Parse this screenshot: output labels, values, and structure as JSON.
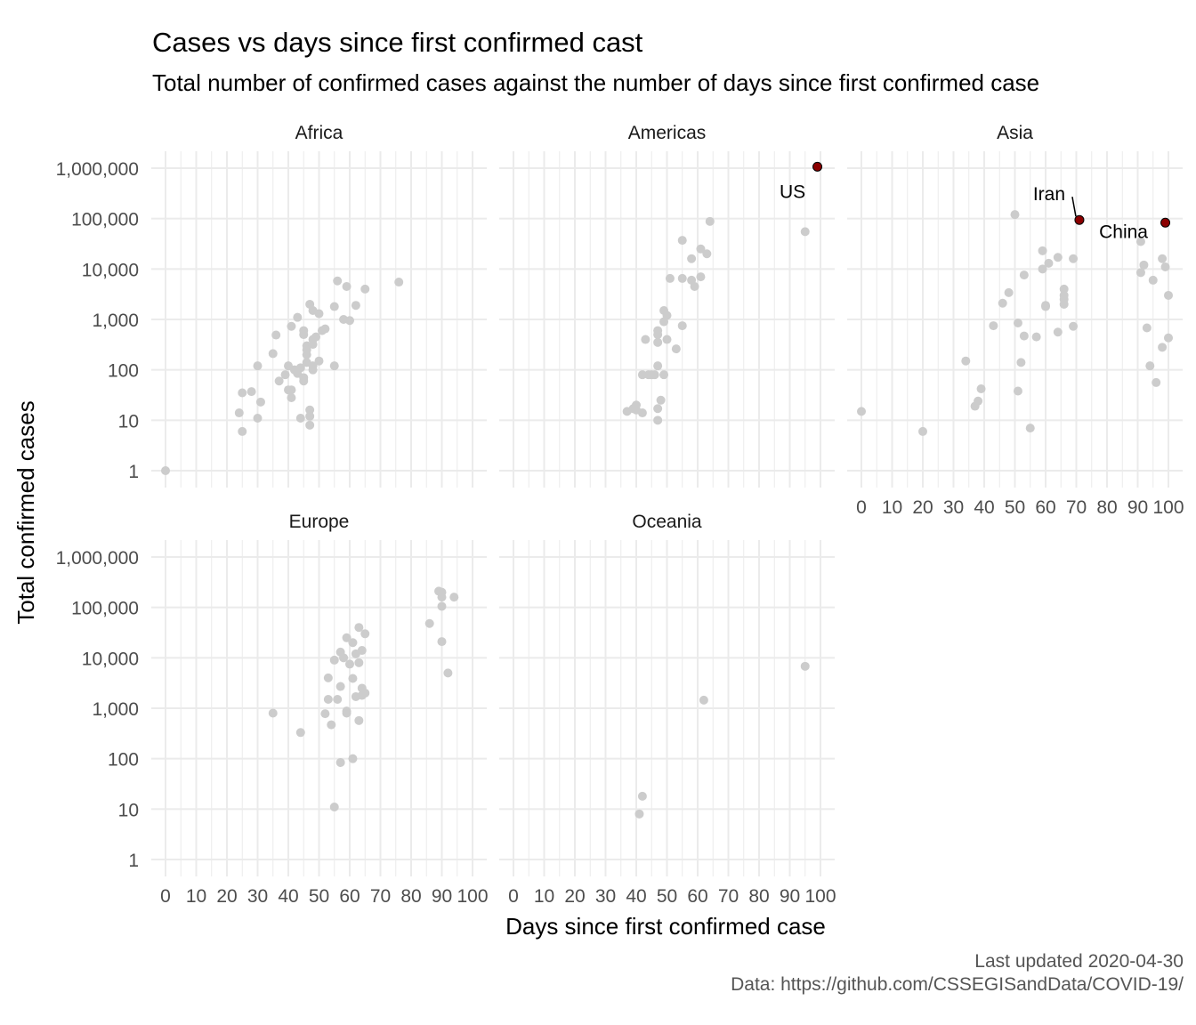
{
  "title": "Cases vs days since first confirmed cast",
  "subtitle": "Total number of confirmed cases against the number of days since first confirmed case",
  "caption": {
    "updated": "Last updated 2020-04-30",
    "source": "Data: https://github.com/CSSEGISandData/COVID-19/"
  },
  "colors": {
    "point": "#cccccc",
    "highlight": "#8b0000",
    "grid": "#ebebeb",
    "text": "#4d4d4d"
  },
  "chart_data": {
    "type": "scatter",
    "xlabel": "Days since first confirmed case",
    "ylabel": "Total confirmed cases",
    "xlim": [
      0,
      100
    ],
    "xticks": [
      "0",
      "10",
      "20",
      "30",
      "40",
      "50",
      "60",
      "70",
      "80",
      "90",
      "100"
    ],
    "ylim": [
      1,
      1000000
    ],
    "yscale": "log",
    "yticks": [
      "1",
      "10",
      "100",
      "1,000",
      "10,000",
      "100,000",
      "1,000,000"
    ],
    "grid": true,
    "facets": [
      {
        "name": "Africa",
        "points": [
          [
            0,
            1
          ],
          [
            24,
            14
          ],
          [
            25,
            35
          ],
          [
            25,
            6
          ],
          [
            28,
            37
          ],
          [
            30,
            120
          ],
          [
            30,
            11
          ],
          [
            31,
            23
          ],
          [
            35,
            210
          ],
          [
            36,
            490
          ],
          [
            37,
            60
          ],
          [
            39,
            80
          ],
          [
            40,
            120
          ],
          [
            40,
            40
          ],
          [
            41,
            730
          ],
          [
            41,
            28
          ],
          [
            41,
            40
          ],
          [
            42,
            100
          ],
          [
            43,
            1100
          ],
          [
            43,
            85
          ],
          [
            44,
            11
          ],
          [
            44,
            110
          ],
          [
            45,
            600
          ],
          [
            45,
            500
          ],
          [
            45,
            70
          ],
          [
            45,
            60
          ],
          [
            46,
            140
          ],
          [
            46,
            300
          ],
          [
            46,
            250
          ],
          [
            46,
            200
          ],
          [
            47,
            2000
          ],
          [
            47,
            16
          ],
          [
            47,
            12
          ],
          [
            47,
            8
          ],
          [
            48,
            1500
          ],
          [
            48,
            400
          ],
          [
            48,
            320
          ],
          [
            48,
            120
          ],
          [
            48,
            100
          ],
          [
            49,
            450
          ],
          [
            50,
            1300
          ],
          [
            50,
            150
          ],
          [
            51,
            600
          ],
          [
            52,
            650
          ],
          [
            55,
            1800
          ],
          [
            55,
            120
          ],
          [
            56,
            5800
          ],
          [
            58,
            1000
          ],
          [
            59,
            4500
          ],
          [
            60,
            950
          ],
          [
            62,
            1900
          ],
          [
            65,
            4000
          ],
          [
            76,
            5500
          ]
        ]
      },
      {
        "name": "Americas",
        "points": [
          [
            37,
            15
          ],
          [
            39,
            17
          ],
          [
            40,
            20
          ],
          [
            40,
            16
          ],
          [
            42,
            80
          ],
          [
            42,
            14
          ],
          [
            43,
            400
          ],
          [
            44,
            80
          ],
          [
            45,
            80
          ],
          [
            46,
            80
          ],
          [
            47,
            600
          ],
          [
            47,
            500
          ],
          [
            47,
            350
          ],
          [
            47,
            120
          ],
          [
            47,
            17
          ],
          [
            47,
            10
          ],
          [
            48,
            25
          ],
          [
            49,
            80
          ],
          [
            49,
            1500
          ],
          [
            49,
            900
          ],
          [
            50,
            1200
          ],
          [
            50,
            400
          ],
          [
            51,
            6500
          ],
          [
            53,
            260
          ],
          [
            55,
            37000
          ],
          [
            55,
            6500
          ],
          [
            55,
            750
          ],
          [
            58,
            6000
          ],
          [
            58,
            16000
          ],
          [
            59,
            4500
          ],
          [
            61,
            7000
          ],
          [
            61,
            25000
          ],
          [
            63,
            20000
          ],
          [
            64,
            88000
          ],
          [
            95,
            55000
          ],
          [
            99,
            1070000
          ]
        ]
      },
      {
        "name": "Asia",
        "points": [
          [
            0,
            15
          ],
          [
            20,
            6
          ],
          [
            34,
            150
          ],
          [
            37,
            19
          ],
          [
            38,
            24
          ],
          [
            39,
            42
          ],
          [
            43,
            750
          ],
          [
            46,
            2100
          ],
          [
            48,
            3400
          ],
          [
            50,
            120000
          ],
          [
            51,
            38
          ],
          [
            51,
            850
          ],
          [
            52,
            140
          ],
          [
            53,
            7600
          ],
          [
            53,
            470
          ],
          [
            55,
            7
          ],
          [
            57,
            450
          ],
          [
            59,
            10000
          ],
          [
            59,
            23000
          ],
          [
            60,
            1900
          ],
          [
            60,
            1800
          ],
          [
            61,
            13000
          ],
          [
            64,
            17000
          ],
          [
            64,
            560
          ],
          [
            66,
            4000
          ],
          [
            66,
            3000
          ],
          [
            66,
            2500
          ],
          [
            66,
            2000
          ],
          [
            69,
            16000
          ],
          [
            69,
            730
          ],
          [
            71,
            94000
          ],
          [
            91,
            35000
          ],
          [
            91,
            8500
          ],
          [
            92,
            12000
          ],
          [
            93,
            680
          ],
          [
            94,
            120
          ],
          [
            95,
            6000
          ],
          [
            96,
            56
          ],
          [
            98,
            16000
          ],
          [
            98,
            280
          ],
          [
            99,
            83000
          ],
          [
            99,
            11000
          ],
          [
            100,
            3000
          ],
          [
            100,
            430
          ]
        ]
      },
      {
        "name": "Europe",
        "points": [
          [
            35,
            800
          ],
          [
            44,
            330
          ],
          [
            52,
            780
          ],
          [
            53,
            1500
          ],
          [
            53,
            4000
          ],
          [
            54,
            470
          ],
          [
            55,
            9000
          ],
          [
            55,
            11
          ],
          [
            56,
            1500
          ],
          [
            57,
            2700
          ],
          [
            57,
            13000
          ],
          [
            57,
            84
          ],
          [
            58,
            10000
          ],
          [
            59,
            25000
          ],
          [
            59,
            800
          ],
          [
            59,
            880
          ],
          [
            60,
            7500
          ],
          [
            61,
            20000
          ],
          [
            61,
            3900
          ],
          [
            61,
            100
          ],
          [
            62,
            1700
          ],
          [
            62,
            12000
          ],
          [
            63,
            40000
          ],
          [
            63,
            8000
          ],
          [
            63,
            570
          ],
          [
            64,
            14000
          ],
          [
            64,
            2500
          ],
          [
            64,
            1800
          ],
          [
            65,
            30000
          ],
          [
            65,
            2000
          ],
          [
            86,
            48000
          ],
          [
            89,
            210000
          ],
          [
            90,
            200000
          ],
          [
            90,
            160000
          ],
          [
            90,
            105000
          ],
          [
            90,
            21000
          ],
          [
            92,
            5000
          ],
          [
            94,
            160000
          ]
        ]
      },
      {
        "name": "Oceania",
        "points": [
          [
            41,
            8
          ],
          [
            42,
            18
          ],
          [
            62,
            1450
          ],
          [
            95,
            6800
          ]
        ]
      }
    ],
    "highlights": [
      {
        "facet": "Americas",
        "label": "US",
        "x": 99,
        "y": 1070000
      },
      {
        "facet": "Asia",
        "label": "Iran",
        "x": 71,
        "y": 94000
      },
      {
        "facet": "Asia",
        "label": "China",
        "x": 99,
        "y": 83000
      }
    ]
  }
}
